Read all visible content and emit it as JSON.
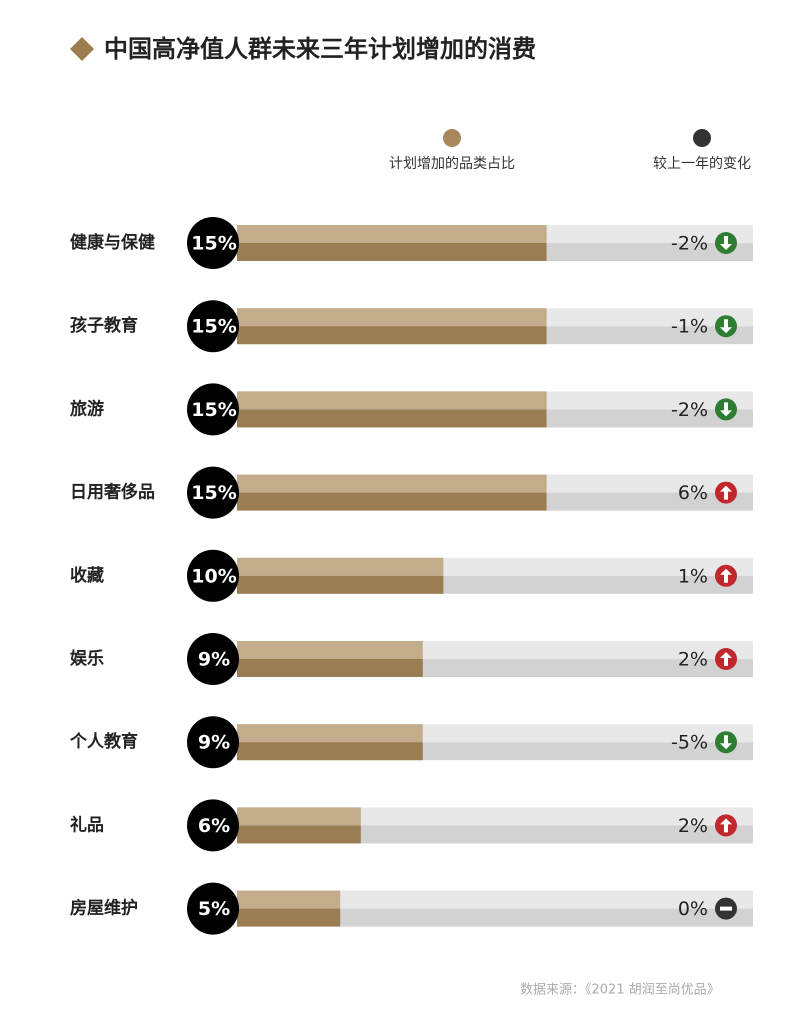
{
  "chart_data": {
    "type": "bar",
    "orientation": "horizontal",
    "title": "中国高净值人群未来三年计划增加的消费",
    "categories": [
      "健康与保健",
      "孩子教育",
      "旅游",
      "日用奢侈品",
      "收藏",
      "娱乐",
      "个人教育",
      "礼品",
      "房屋维护"
    ],
    "xlim": [
      0,
      25
    ],
    "series": [
      {
        "name": "计划增加的品类占比",
        "color": "#a8885a",
        "values": [
          15,
          15,
          15,
          15,
          10,
          9,
          9,
          6,
          5
        ],
        "value_labels": [
          "15%",
          "15%",
          "15%",
          "15%",
          "10%",
          "9%",
          "9%",
          "6%",
          "5%"
        ]
      },
      {
        "name": "较上一年的变化",
        "color": "#333333",
        "values": [
          -2,
          -1,
          -2,
          6,
          1,
          2,
          -5,
          2,
          0
        ],
        "value_labels": [
          "-2%",
          "-1%",
          "-2%",
          "6%",
          "1%",
          "2%",
          "-5%",
          "2%",
          "0%"
        ]
      }
    ],
    "source": "数据来源：《2021 胡润至尚优品》"
  }
}
